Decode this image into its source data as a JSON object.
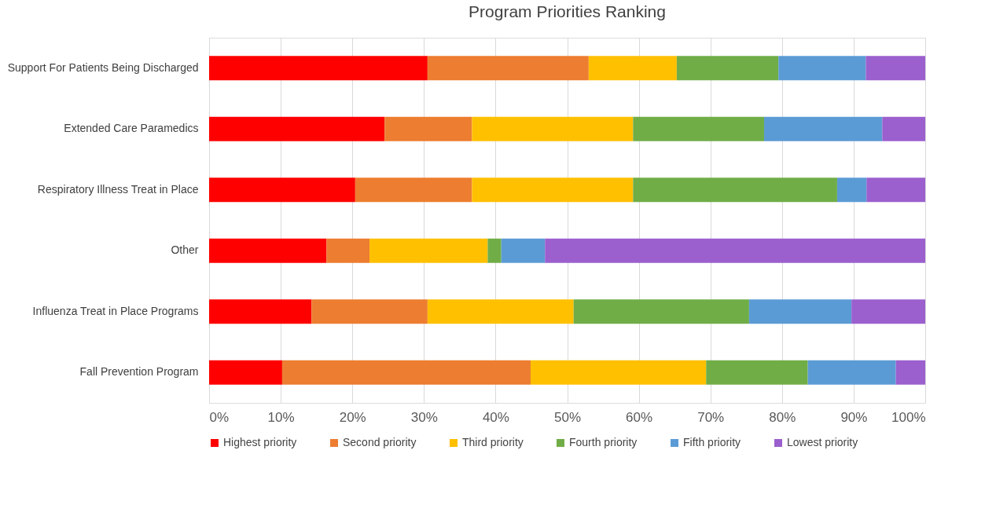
{
  "chart_data": {
    "type": "bar",
    "title": "Program Priorities Ranking",
    "orientation": "horizontal",
    "stacked": true,
    "categories": [
      "Support For Patients  Being Discharged",
      "Extended Care Paramedics",
      "Respiratory Illness Treat in Place",
      "Other",
      "Influenza Treat in Place Programs",
      "Fall Prevention Program"
    ],
    "series": [
      {
        "name": "Highest priority",
        "color": "#ff0000",
        "values": [
          30.5,
          24.5,
          20.4,
          16.4,
          14.3,
          10.2
        ]
      },
      {
        "name": "Second priority",
        "color": "#ed7d31",
        "values": [
          22.5,
          12.2,
          16.3,
          6.0,
          16.2,
          34.7
        ]
      },
      {
        "name": "Third priority",
        "color": "#ffc000",
        "values": [
          12.3,
          22.5,
          22.5,
          16.5,
          20.4,
          24.5
        ]
      },
      {
        "name": "Fourth priority",
        "color": "#70ad47",
        "values": [
          14.2,
          18.3,
          28.5,
          1.9,
          24.5,
          14.2
        ]
      },
      {
        "name": "Fifth priority",
        "color": "#5b9bd5",
        "values": [
          12.2,
          16.5,
          4.1,
          6.1,
          14.3,
          12.3
        ]
      },
      {
        "name": "Lowest priority",
        "color": "#9b5fce",
        "values": [
          8.3,
          6.0,
          8.2,
          53.1,
          10.3,
          4.1
        ]
      }
    ],
    "xlim": [
      0,
      100
    ],
    "xticks": [
      {
        "value": 0,
        "label": "0%"
      },
      {
        "value": 10,
        "label": "10%"
      },
      {
        "value": 20,
        "label": "20%"
      },
      {
        "value": 30,
        "label": "30%"
      },
      {
        "value": 40,
        "label": "40%"
      },
      {
        "value": 50,
        "label": "50%"
      },
      {
        "value": 60,
        "label": "60%"
      },
      {
        "value": 70,
        "label": "70%"
      },
      {
        "value": 80,
        "label": "80%"
      },
      {
        "value": 90,
        "label": "90%"
      },
      {
        "value": 100,
        "label": "100%"
      }
    ],
    "grid": "x",
    "legend": "bottom"
  }
}
